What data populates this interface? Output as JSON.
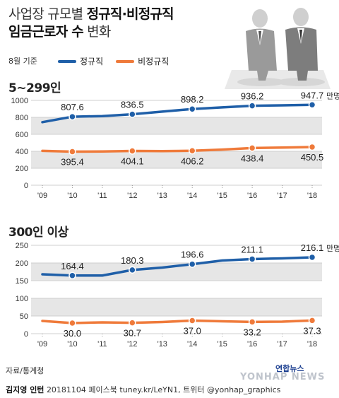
{
  "header": {
    "title_part1": "사업장 규모별 ",
    "title_part2": "정규직·비정규직",
    "title_part3": "임금근로자 수",
    "title_part4": " 변화",
    "basis": "8월 기준"
  },
  "legend": {
    "regular": "정규직",
    "irregular": "비정규직"
  },
  "colors": {
    "regular": "#1f5fa8",
    "irregular": "#ef7a3a",
    "band": "#e6e6e6"
  },
  "chart_data": [
    {
      "type": "line",
      "title": "5~299인",
      "x": [
        "'09",
        "'10",
        "'11",
        "'12",
        "'13",
        "'14",
        "'15",
        "'16",
        "'17",
        "'18"
      ],
      "ylim": [
        0,
        1000
      ],
      "yticks": [
        0,
        200,
        400,
        600,
        800,
        1000
      ],
      "unit": "만명",
      "series": [
        {
          "name": "정규직",
          "values": [
            743,
            807.6,
            815,
            836.5,
            868,
            898.2,
            918,
            936.2,
            942,
            947.7
          ],
          "labels": [
            null,
            "807.6",
            null,
            "836.5",
            null,
            "898.2",
            null,
            "936.2",
            null,
            "947.7"
          ]
        },
        {
          "name": "비정규직",
          "values": [
            405,
            395.4,
            398,
            404.1,
            402,
            406.2,
            420,
            438.4,
            444,
            450.5
          ],
          "labels": [
            null,
            "395.4",
            null,
            "404.1",
            null,
            "406.2",
            null,
            "438.4",
            null,
            "450.5"
          ]
        }
      ]
    },
    {
      "type": "line",
      "title": "300인 이상",
      "x": [
        "'09",
        "'10",
        "'11",
        "'12",
        "'13",
        "'14",
        "'15",
        "'16",
        "'17",
        "'18"
      ],
      "ylim": [
        0,
        250
      ],
      "yticks": [
        0,
        50,
        100,
        150,
        200,
        250
      ],
      "unit": "만명",
      "series": [
        {
          "name": "정규직",
          "values": [
            168,
            164.4,
            164.5,
            180.3,
            187,
            196.6,
            207,
            211.1,
            213,
            216.1
          ],
          "labels": [
            null,
            "164.4",
            null,
            "180.3",
            null,
            "196.6",
            null,
            "211.1",
            null,
            "216.1"
          ]
        },
        {
          "name": "비정규직",
          "values": [
            36,
            30.0,
            32,
            30.7,
            33,
            37.0,
            35,
            33.2,
            34,
            37.3
          ],
          "labels": [
            null,
            "30.0",
            null,
            "30.7",
            null,
            "37.0",
            null,
            "33.2",
            null,
            "37.3"
          ]
        }
      ]
    }
  ],
  "footer": {
    "source": "자료/통계청",
    "author": "김지영 인턴",
    "credit": "20181104 페이스북 tuney.kr/LeYN1, 트위터 @yonhap_graphics",
    "agency": "연합뉴스",
    "watermark": "YONHAP NEWS"
  }
}
